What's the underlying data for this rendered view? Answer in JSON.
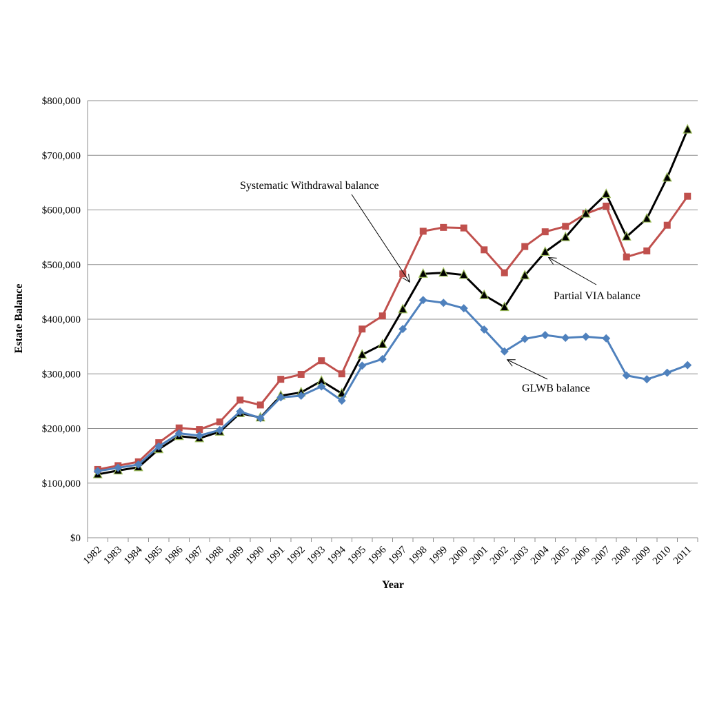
{
  "chart_data": {
    "type": "line",
    "title": "",
    "xlabel": "Year",
    "ylabel": "Estate Balance",
    "ylim": [
      0,
      800000
    ],
    "yticks": [
      0,
      100000,
      200000,
      300000,
      400000,
      500000,
      600000,
      700000,
      800000
    ],
    "ytick_labels": [
      "$0",
      "$100,000",
      "$200,000",
      "$300,000",
      "$400,000",
      "$500,000",
      "$600,000",
      "$700,000",
      "$800,000"
    ],
    "grid": true,
    "categories": [
      "1982",
      "1983",
      "1984",
      "1985",
      "1986",
      "1987",
      "1988",
      "1989",
      "1990",
      "1991",
      "1992",
      "1993",
      "1994",
      "1995",
      "1996",
      "1997",
      "1998",
      "1999",
      "2000",
      "2001",
      "2002",
      "2003",
      "2004",
      "2005",
      "2006",
      "2007",
      "2008",
      "2009",
      "2010",
      "2011"
    ],
    "series": [
      {
        "name": "Systematic Withdrawal balance",
        "color": "#c0504d",
        "marker": "square",
        "values": [
          125000,
          132000,
          139000,
          174000,
          201000,
          198000,
          212000,
          252000,
          243000,
          290000,
          299000,
          324000,
          300000,
          382000,
          406000,
          483000,
          561000,
          568000,
          567000,
          527000,
          485000,
          533000,
          560000,
          570000,
          593000,
          607000,
          514000,
          525000,
          572000,
          625000
        ]
      },
      {
        "name": "Partial VIA balance",
        "color": "#000000",
        "marker": "triangle",
        "values": [
          116000,
          123000,
          129000,
          162000,
          186000,
          182000,
          194000,
          228000,
          220000,
          260000,
          266000,
          287000,
          264000,
          335000,
          354000,
          418000,
          483000,
          485000,
          481000,
          444000,
          422000,
          480000,
          523000,
          550000,
          593000,
          629000,
          551000,
          584000,
          659000,
          747000
        ]
      },
      {
        "name": "GLWB balance",
        "color": "#4f81bd",
        "marker": "diamond",
        "values": [
          122000,
          128000,
          134000,
          167000,
          191000,
          187000,
          197000,
          231000,
          219000,
          257000,
          260000,
          277000,
          251000,
          315000,
          327000,
          382000,
          435000,
          430000,
          420000,
          381000,
          341000,
          364000,
          371000,
          366000,
          368000,
          365000,
          297000,
          290000,
          302000,
          316000
        ]
      }
    ],
    "annotations": [
      {
        "text": "Systematic Withdrawal balance",
        "series": "Systematic Withdrawal balance",
        "points_to": "1997"
      },
      {
        "text": "Partial VIA balance",
        "series": "Partial VIA balance",
        "points_to": "2004"
      },
      {
        "text": "GLWB balance",
        "series": "GLWB balance",
        "points_to": "2002"
      }
    ]
  }
}
